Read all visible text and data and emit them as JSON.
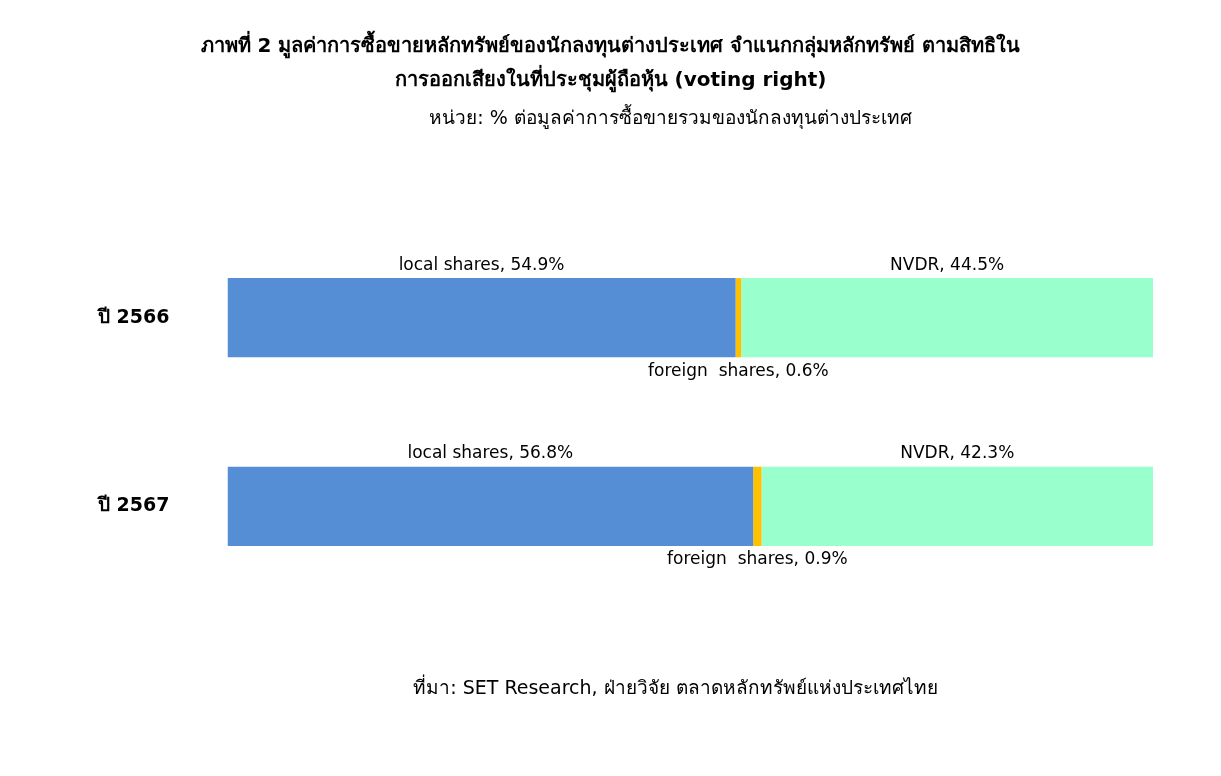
{
  "chart_data": {
    "type": "bar",
    "orientation": "horizontal",
    "stacked": true,
    "title": "ภาพที่ 2 มูลค่าการซื้อขายหลักทรัพย์ของนักลงทุนต่างประเทศ จำแนกกลุ่มหลักทรัพย์ ตามสิทธิในการออกเสียงในที่ประชุมผู้ถือหุ้น (voting right)",
    "subtitle": "หน่วย: % ต่อมูลค่าการซื้อขายรวมของนักลงทุนต่างประเทศ",
    "annotations": [
      "ที่มา: SET Research, ฝ่ายวิจัย ตลาดหลักทรัพย์แห่งประเทศไทย"
    ],
    "categories": [
      "ปี 2566",
      "ปี 2567"
    ],
    "tick_labels": "y",
    "legend": false,
    "series": [
      {
        "color": "#558ed5",
        "values": [
          54.9,
          56.8
        ],
        "value_labels": [
          "local shares, 54.9%",
          "local shares, 56.8%"
        ]
      },
      {
        "color": "#ffc000",
        "values": [
          0.6,
          0.9
        ],
        "value_labels": [
          "foreign  shares, 0.6%",
          "foreign  shares, 0.9%"
        ]
      },
      {
        "color": "#99ffcc",
        "values": [
          44.5,
          42.3
        ],
        "value_labels": [
          "NVDR, 44.5%",
          "NVDR, 42.3%"
        ]
      }
    ]
  }
}
